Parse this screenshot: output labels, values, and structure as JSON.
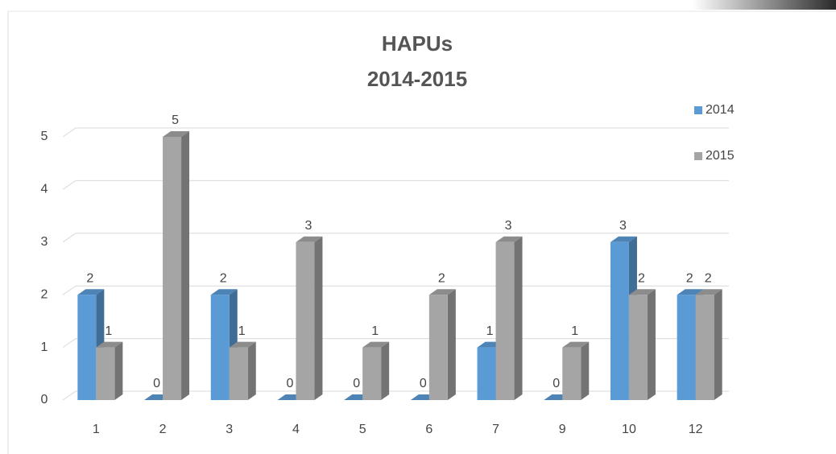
{
  "chart_data": {
    "type": "bar3d",
    "title": "HAPUs",
    "subtitle": "2014-2015",
    "categories": [
      "1",
      "2",
      "3",
      "4",
      "5",
      "6",
      "7",
      "9",
      "10",
      "12"
    ],
    "series": [
      {
        "name": "2014",
        "color": "#5b9bd5",
        "values": [
          2,
          0,
          2,
          0,
          0,
          0,
          1,
          0,
          3,
          2
        ]
      },
      {
        "name": "2015",
        "color": "#a5a5a5",
        "values": [
          1,
          5,
          1,
          3,
          1,
          2,
          3,
          1,
          2,
          2
        ]
      }
    ],
    "ylim": [
      0,
      5
    ],
    "yticks": [
      0,
      1,
      2,
      3,
      4,
      5
    ],
    "grid": true,
    "legend": "top-right",
    "data_labels": true
  }
}
